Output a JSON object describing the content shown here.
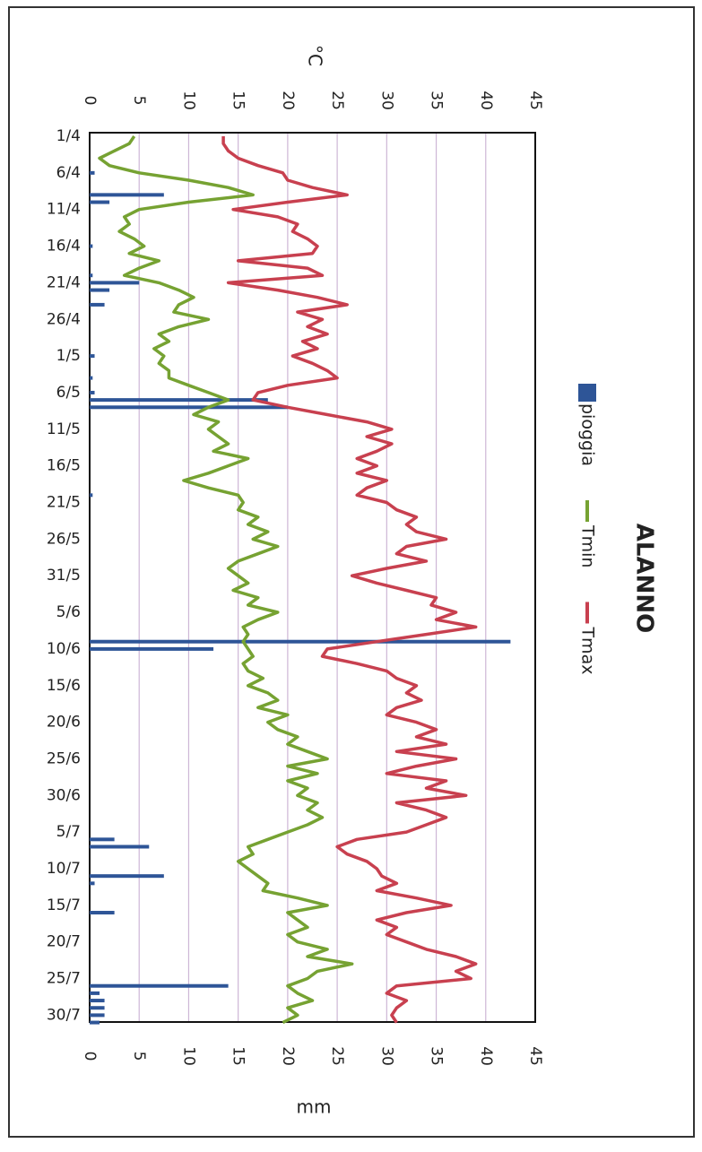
{
  "chart_data": {
    "type": "line",
    "title": "ALANNO",
    "ylabel": "°C",
    "y2label": "mm",
    "ylim": [
      0,
      45
    ],
    "yticks": [
      0,
      5,
      10,
      15,
      20,
      25,
      30,
      35,
      40,
      45
    ],
    "y2lim": [
      0,
      45
    ],
    "y2ticks": [
      0,
      5,
      10,
      15,
      20,
      25,
      30,
      35,
      40,
      45
    ],
    "grid": true,
    "categories": [
      "1/4",
      null,
      null,
      null,
      null,
      "6/4",
      null,
      null,
      null,
      null,
      "11/4",
      null,
      null,
      null,
      null,
      "16/4",
      null,
      null,
      null,
      null,
      "21/4",
      null,
      null,
      null,
      null,
      "26/4",
      null,
      null,
      null,
      null,
      "1/5",
      null,
      null,
      null,
      null,
      "6/5",
      null,
      null,
      null,
      null,
      "11/5",
      null,
      null,
      null,
      null,
      "16/5",
      null,
      null,
      null,
      null,
      "21/5",
      null,
      null,
      null,
      null,
      "26/5",
      null,
      null,
      null,
      null,
      "31/5",
      null,
      null,
      null,
      null,
      "5/6",
      null,
      null,
      null,
      null,
      "10/6",
      null,
      null,
      null,
      null,
      "15/6",
      null,
      null,
      null,
      null,
      "20/6",
      null,
      null,
      null,
      null,
      "25/6",
      null,
      null,
      null,
      null,
      "30/6",
      null,
      null,
      null,
      null,
      "5/7",
      null,
      null,
      null,
      null,
      "10/7",
      null,
      null,
      null,
      null,
      "15/7",
      null,
      null,
      null,
      null,
      "20/7",
      null,
      null,
      null,
      null,
      "25/7",
      null,
      null,
      null,
      null,
      "30/7",
      null
    ],
    "series": [
      {
        "name": "pioggia",
        "type": "bar",
        "axis": "y2",
        "color": "#2e5597",
        "values": [
          0,
          0,
          0,
          0,
          0,
          0.5,
          0,
          0,
          7.5,
          2,
          0,
          0,
          0,
          0,
          0,
          0.3,
          0,
          0,
          0,
          0.3,
          5,
          2,
          0,
          1.5,
          0,
          0,
          0,
          0,
          0,
          0,
          0.5,
          0,
          0,
          0.3,
          0,
          0.5,
          18,
          20,
          0,
          0,
          0,
          0,
          0,
          0,
          0,
          0,
          0,
          0,
          0,
          0.3,
          0,
          0,
          0,
          0,
          0,
          0,
          0,
          0,
          0,
          0,
          0,
          0,
          0,
          0,
          0,
          0,
          0,
          0,
          0,
          42.5,
          12.5,
          0,
          0,
          0,
          0,
          0,
          0,
          0,
          0,
          0,
          0,
          0,
          0,
          0,
          0,
          0,
          0,
          0,
          0,
          0,
          0,
          0,
          0,
          0,
          0,
          0,
          2.5,
          6,
          0,
          0,
          0,
          7.5,
          0.5,
          0,
          0,
          0,
          2.5,
          0,
          0,
          0,
          0,
          0,
          0,
          0,
          0,
          0,
          14,
          1,
          1.5,
          1.5,
          1.5,
          1
        ]
      },
      {
        "name": "Tmin",
        "type": "line",
        "color": "#76a232",
        "values": [
          4.5,
          4,
          2.5,
          1,
          2,
          5,
          10,
          14,
          16.5,
          10,
          5,
          3.5,
          4,
          3,
          4.5,
          5.5,
          4,
          7,
          5,
          3.5,
          7,
          9,
          10.5,
          9,
          8.5,
          12,
          9,
          7,
          8,
          6.5,
          7.5,
          7,
          8,
          8,
          10,
          12,
          14,
          12,
          10.5,
          13,
          12,
          13,
          14,
          12.5,
          16,
          14,
          12,
          9.5,
          12,
          15,
          15.5,
          15,
          17,
          16,
          18,
          16.5,
          19,
          17,
          15,
          14,
          15,
          16,
          14.5,
          17,
          16,
          19,
          17,
          15.5,
          16,
          15.5,
          16,
          16.5,
          15.5,
          16,
          17.5,
          16,
          18,
          19,
          17,
          20,
          18,
          19,
          21,
          20,
          22,
          24,
          20,
          23,
          20,
          22,
          21,
          23,
          22,
          23.5,
          22,
          20,
          18,
          16,
          16.5,
          15,
          16,
          17,
          18,
          17.5,
          21,
          24,
          20,
          21,
          22,
          20,
          21,
          24,
          22,
          26.5,
          23,
          22,
          20,
          21,
          22.5,
          20,
          21,
          19.5
        ]
      },
      {
        "name": "Tmax",
        "type": "line",
        "color": "#c8404f",
        "values": [
          13.5,
          13.5,
          14,
          15,
          17,
          19.5,
          20,
          22.5,
          26,
          20,
          14.5,
          19,
          21,
          20.5,
          22,
          23,
          22.5,
          15,
          22,
          23.5,
          14,
          19,
          23,
          26,
          21,
          23.5,
          22,
          24,
          21.5,
          23,
          20.5,
          22.5,
          24,
          25,
          20,
          17,
          16.5,
          20,
          24,
          28,
          30.5,
          28,
          30.5,
          29,
          27,
          29,
          27,
          30,
          28,
          27,
          30,
          31,
          33,
          32,
          33,
          36,
          32,
          31,
          34,
          30,
          26.5,
          29,
          32,
          35,
          34.5,
          37,
          35,
          39,
          34,
          29,
          24,
          23.5,
          27,
          30,
          31,
          33,
          32,
          33.5,
          31,
          30,
          33,
          35,
          33,
          36,
          31,
          37,
          33,
          30,
          36,
          34,
          38,
          31,
          34,
          36,
          34,
          32,
          27,
          25,
          26,
          28,
          29,
          29.5,
          31,
          29,
          33,
          36.5,
          32,
          29,
          31,
          30,
          32,
          34,
          37,
          39,
          37,
          38.5,
          31,
          30,
          32,
          31,
          30.5,
          31
        ]
      }
    ]
  }
}
